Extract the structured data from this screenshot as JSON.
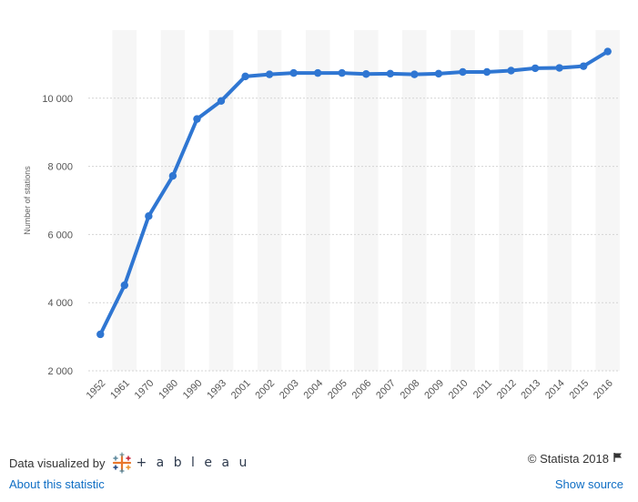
{
  "chart_data": {
    "type": "line",
    "title": "",
    "xlabel": "",
    "ylabel": "Number of stations",
    "categories": [
      "1952",
      "1961",
      "1970",
      "1980",
      "1990",
      "1993",
      "2001",
      "2002",
      "2003",
      "2004",
      "2005",
      "2006",
      "2007",
      "2008",
      "2009",
      "2010",
      "2011",
      "2012",
      "2013",
      "2014",
      "2015",
      "2016"
    ],
    "series": [
      {
        "values": [
          3070,
          4510,
          6540,
          7720,
          9390,
          9920,
          10640,
          10700,
          10740,
          10740,
          10740,
          10710,
          10720,
          10700,
          10720,
          10770,
          10770,
          10810,
          10880,
          10890,
          10940,
          11370
        ]
      }
    ],
    "ylim": [
      2000,
      12000
    ],
    "yticks": [
      2000,
      4000,
      6000,
      8000,
      10000
    ],
    "ytick_labels": [
      "2 000",
      "4 000",
      "6 000",
      "8 000",
      "10 000"
    ],
    "grid": true,
    "line_color": "#2f76d2"
  },
  "footer": {
    "credit_text": "Data visualized by",
    "tableau_word": "+ a b l e a u",
    "copyright": "© Statista 2018",
    "about_link": "About this statistic",
    "source_link": "Show source"
  }
}
